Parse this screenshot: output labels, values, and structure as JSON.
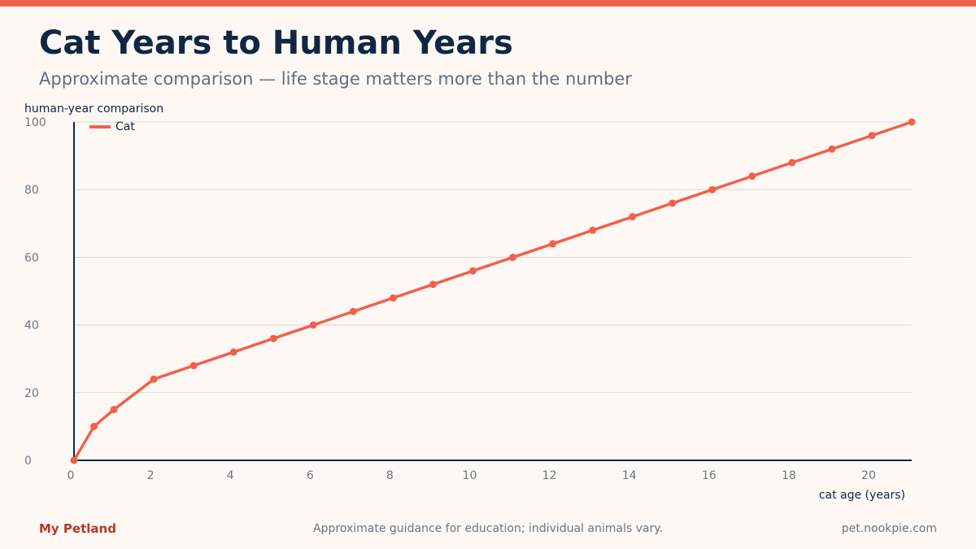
{
  "header": {
    "title": "Cat Years to Human Years",
    "subtitle": "Approximate comparison — life stage matters more than the number"
  },
  "footer": {
    "brand": "My Petland",
    "note": "Approximate guidance for education; individual animals vary.",
    "url": "pet.nookpie.com"
  },
  "colors": {
    "accent": "#f0614b",
    "title": "#0f2744",
    "brand": "#b2382a"
  },
  "chart_data": {
    "type": "line",
    "title": "Cat Years to Human Years",
    "subtitle": "Approximate comparison — life stage matters more than the number",
    "xlabel": "cat age (years)",
    "ylabel": "human-year comparison",
    "xlim": [
      0,
      21
    ],
    "ylim": [
      0,
      100
    ],
    "x_ticks": [
      0,
      2,
      4,
      6,
      8,
      10,
      12,
      14,
      16,
      18,
      20
    ],
    "y_ticks": [
      0,
      20,
      40,
      60,
      80,
      100
    ],
    "grid": "horizontal",
    "legend": "top-left",
    "series": [
      {
        "name": "Cat",
        "color": "#f0614b",
        "x": [
          0,
          0.5,
          1,
          2,
          3,
          4,
          5,
          6,
          7,
          8,
          9,
          10,
          11,
          12,
          13,
          14,
          15,
          16,
          17,
          18,
          19,
          20,
          21
        ],
        "y": [
          0,
          10,
          15,
          24,
          28,
          32,
          36,
          40,
          44,
          48,
          52,
          56,
          60,
          64,
          68,
          72,
          76,
          80,
          84,
          88,
          92,
          96,
          100
        ]
      }
    ]
  }
}
